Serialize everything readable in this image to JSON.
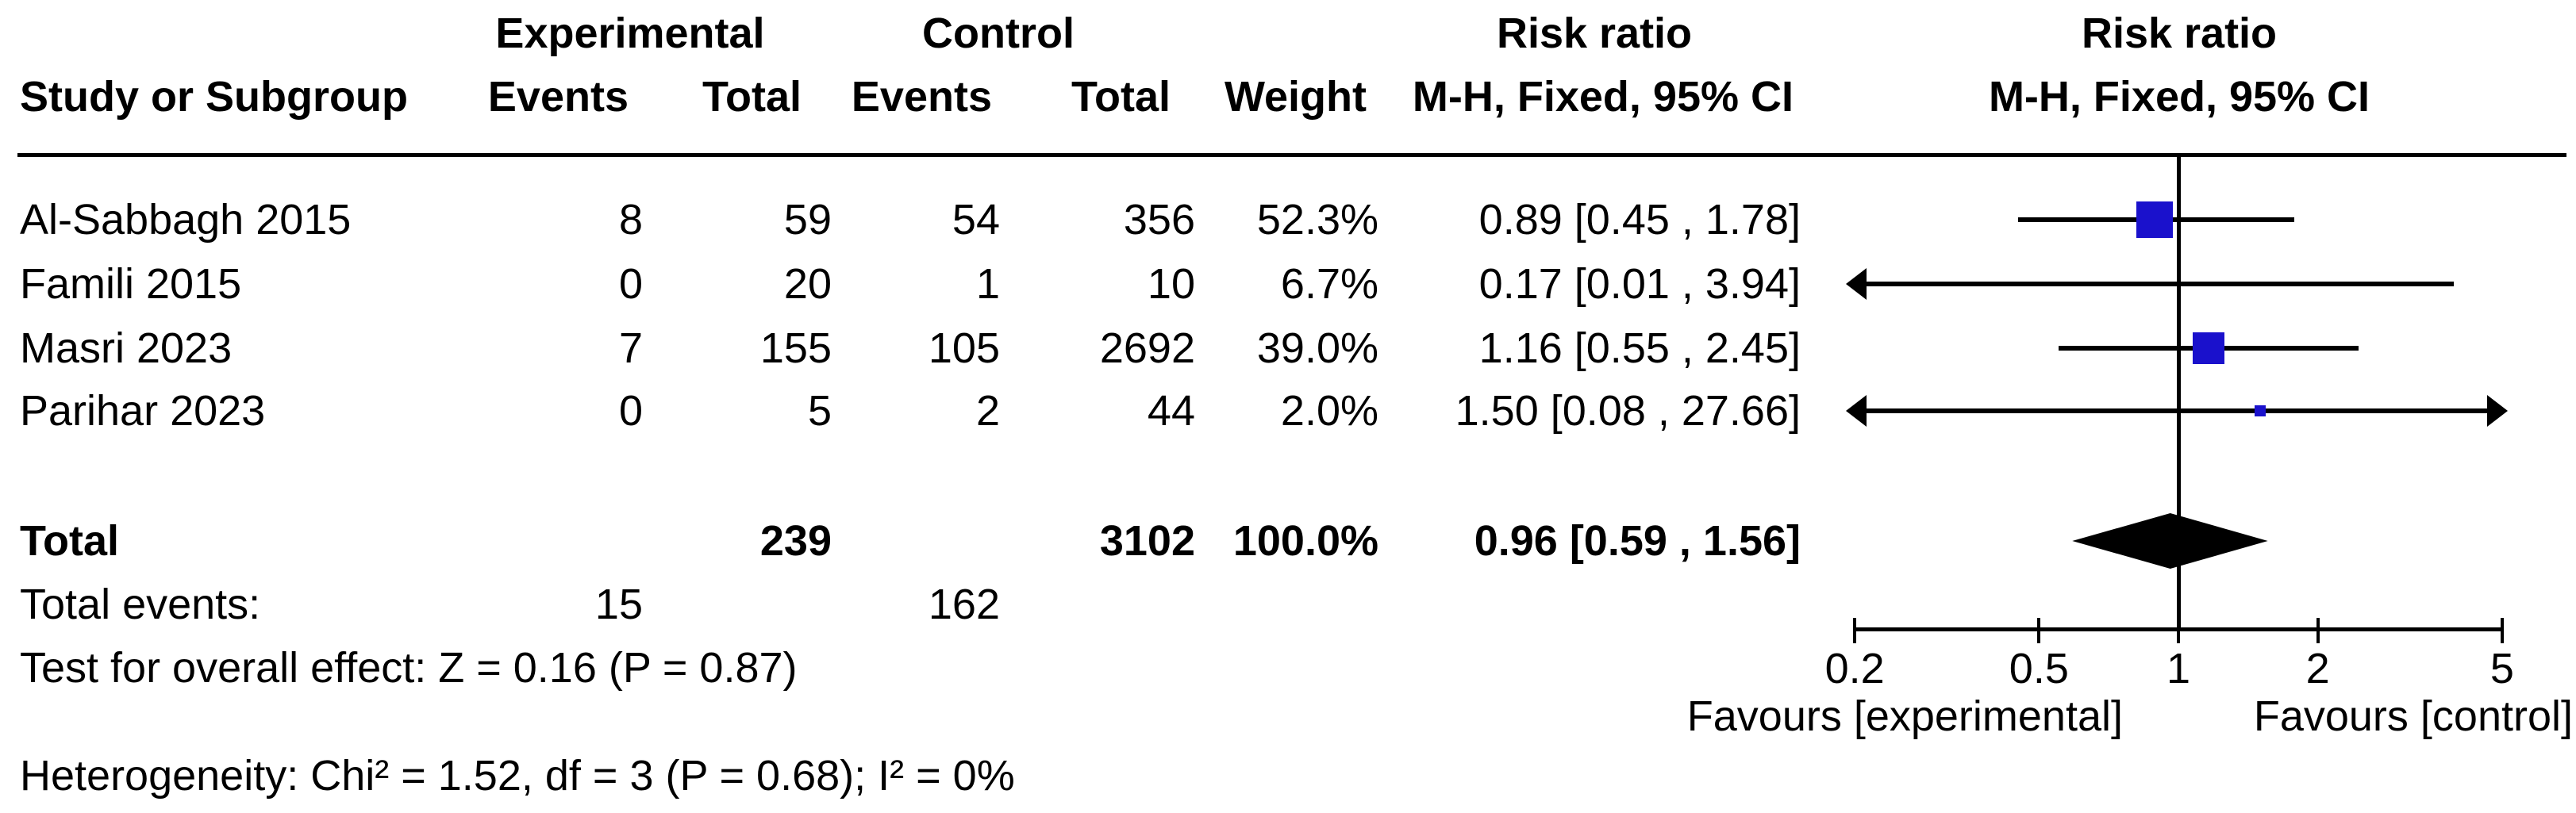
{
  "header": {
    "group1": "Experimental",
    "group2": "Control",
    "effect_title": "Risk ratio",
    "effect_method": "M-H, Fixed, 95% CI",
    "plot_effect_title": "Risk ratio",
    "plot_effect_method": "M-H, Fixed, 95% CI",
    "col_study": "Study or Subgroup",
    "col_events1": "Events",
    "col_total1": "Total",
    "col_events2": "Events",
    "col_total2": "Total",
    "col_weight": "Weight"
  },
  "rows": [
    {
      "name": "Al-Sabbagh 2015",
      "exp_events": "8",
      "exp_total": "59",
      "ctrl_events": "54",
      "ctrl_total": "356",
      "weight": "52.3%",
      "ci_text": "0.89 [0.45 , 1.78]"
    },
    {
      "name": "Famili 2015",
      "exp_events": "0",
      "exp_total": "20",
      "ctrl_events": "1",
      "ctrl_total": "10",
      "weight": "6.7%",
      "ci_text": "0.17 [0.01 , 3.94]"
    },
    {
      "name": "Masri 2023",
      "exp_events": "7",
      "exp_total": "155",
      "ctrl_events": "105",
      "ctrl_total": "2692",
      "weight": "39.0%",
      "ci_text": "1.16 [0.55 , 2.45]"
    },
    {
      "name": "Parihar 2023",
      "exp_events": "0",
      "exp_total": "5",
      "ctrl_events": "2",
      "ctrl_total": "44",
      "weight": "2.0%",
      "ci_text": "1.50 [0.08 , 27.66]"
    }
  ],
  "total_row": {
    "label": "Total",
    "exp_total": "239",
    "ctrl_total": "3102",
    "weight": "100.0%",
    "ci_text": "0.96 [0.59 , 1.56]"
  },
  "total_events": {
    "label": "Total events:",
    "exp": "15",
    "ctrl": "162"
  },
  "footer": {
    "overall_effect": "Test for overall effect: Z = 0.16 (P = 0.87)",
    "heterogeneity": "Heterogeneity: Chi² = 1.52, df = 3 (P = 0.68); I² = 0%"
  },
  "axis": {
    "tick_labels": [
      "0.2",
      "0.5",
      "1",
      "2",
      "5"
    ],
    "favours_left": "Favours [experimental]",
    "favours_right": "Favours [control]"
  },
  "colors": {
    "marker_blue": "#1A11CC",
    "line_black": "#000000"
  },
  "chart_data": {
    "type": "scatter",
    "subtype": "forest-plot",
    "title": "Risk ratio, M-H, Fixed, 95% CI",
    "x_scale": "log10",
    "x_range": [
      0.2,
      5
    ],
    "x_ticks": [
      0.2,
      0.5,
      1,
      2,
      5
    ],
    "null_line": 1,
    "legend_left": "Favours [experimental]",
    "legend_right": "Favours [control]",
    "studies": [
      {
        "name": "Al-Sabbagh 2015",
        "rr": 0.89,
        "ci_low": 0.45,
        "ci_high": 1.78,
        "weight_pct": 52.3
      },
      {
        "name": "Famili 2015",
        "rr": 0.17,
        "ci_low": 0.01,
        "ci_high": 3.94,
        "weight_pct": 6.7
      },
      {
        "name": "Masri 2023",
        "rr": 1.16,
        "ci_low": 0.55,
        "ci_high": 2.45,
        "weight_pct": 39.0
      },
      {
        "name": "Parihar 2023",
        "rr": 1.5,
        "ci_low": 0.08,
        "ci_high": 27.66,
        "weight_pct": 2.0
      }
    ],
    "overall": {
      "rr": 0.96,
      "ci_low": 0.59,
      "ci_high": 1.56,
      "weight_pct": 100.0
    },
    "totals": {
      "exp_events": 15,
      "exp_total": 239,
      "ctrl_events": 162,
      "ctrl_total": 3102
    },
    "heterogeneity": {
      "chi2": 1.52,
      "df": 3,
      "p": 0.68,
      "i2_pct": 0
    },
    "overall_effect_test": {
      "z": 0.16,
      "p": 0.87
    }
  }
}
